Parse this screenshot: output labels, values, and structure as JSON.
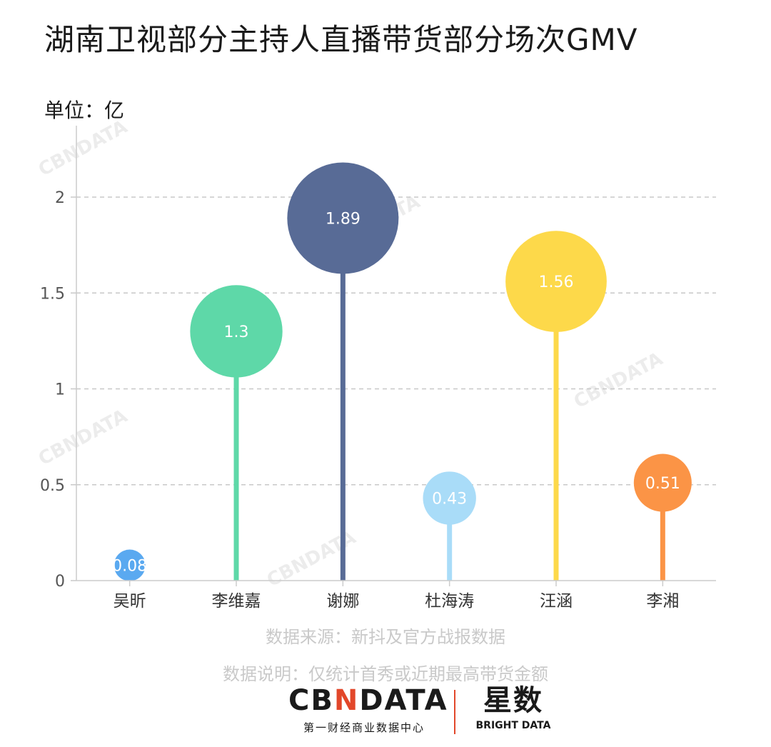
{
  "header": {
    "title": "湖南卫视部分主持人直播带货部分场次GMV",
    "unit": "单位：亿"
  },
  "chart_data": {
    "type": "lollipop-bubble",
    "categories": [
      "吴昕",
      "李维嘉",
      "谢娜",
      "杜海涛",
      "汪涵",
      "李湘"
    ],
    "values": [
      0.08,
      1.3,
      1.89,
      0.43,
      1.56,
      0.51
    ],
    "data_labels": [
      "0.08",
      "1.3",
      "1.89",
      "0.43",
      "1.56",
      "0.51"
    ],
    "colors": [
      "#5aa9f0",
      "#5ed8a8",
      "#586b96",
      "#a9dcf8",
      "#fdd94a",
      "#fb9446"
    ],
    "ylim": [
      0,
      2
    ],
    "yticks": [
      0,
      0.5,
      1,
      1.5,
      2
    ],
    "ytick_labels": [
      "0",
      "0.5",
      "1",
      "1.5",
      "2"
    ],
    "grid": "horizontal dashed"
  },
  "footer": {
    "source": "数据来源：新抖及官方战报数据",
    "description": "数据说明：仅统计首秀或近期最高带货金额"
  },
  "brand": {
    "logo_left_a": "CB",
    "logo_left_b": "N",
    "logo_left_c": "DATA",
    "sub_left": "第一财经商业数据中心",
    "logo_right": "星数",
    "sub_right": "BRIGHT DATA",
    "accent_color": "#e2472a"
  },
  "watermark": "CBNDATA 第一财经商业数据中心"
}
